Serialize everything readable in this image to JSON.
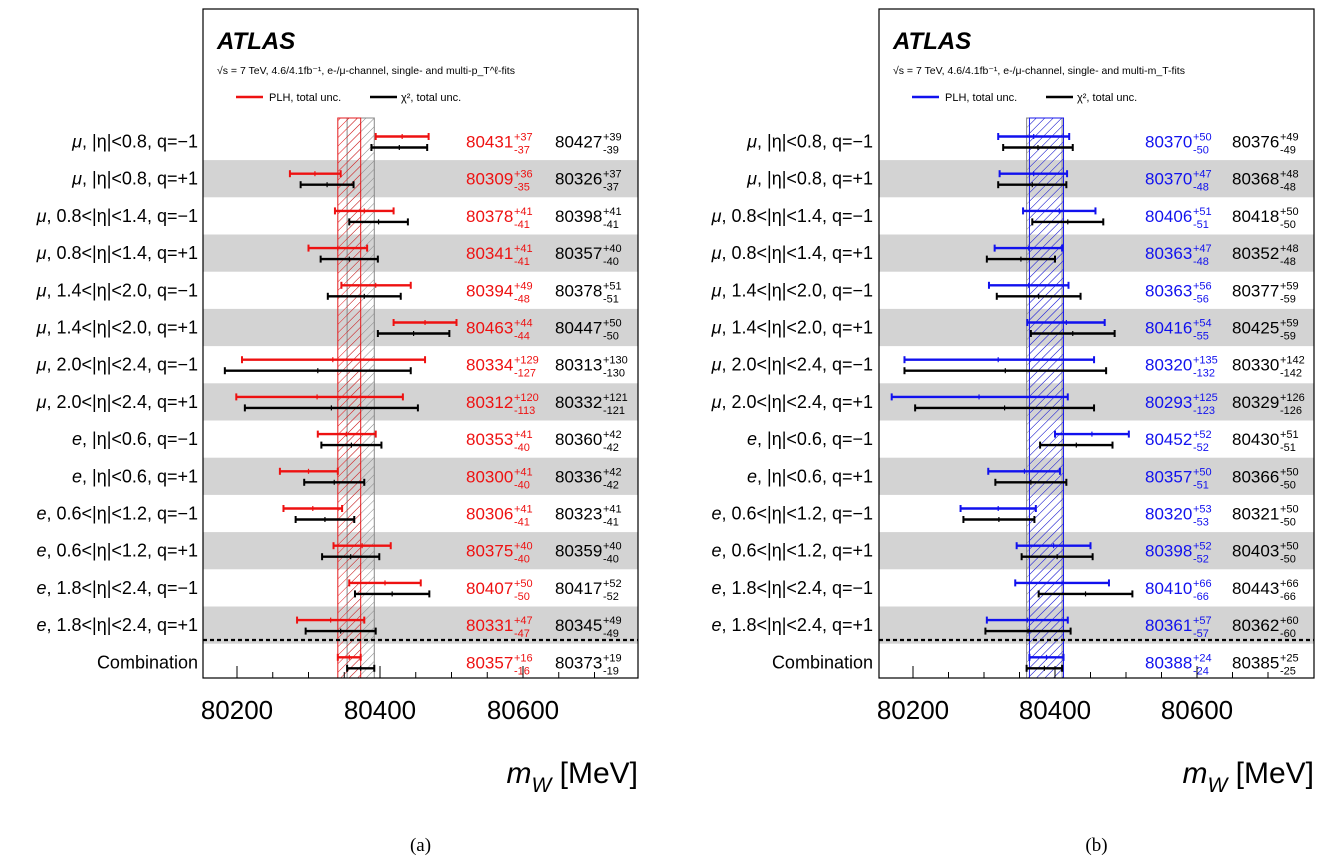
{
  "figure": {
    "row_labels": [
      "μ, |η|<0.8, q=−1",
      "μ, |η|<0.8, q=+1",
      "μ, 0.8<|η|<1.4, q=−1",
      "μ, 0.8<|η|<1.4, q=+1",
      "μ, 1.4<|η|<2.0, q=−1",
      "μ, 1.4<|η|<2.0, q=+1",
      "μ, 2.0<|η|<2.4, q=−1",
      "μ, 2.0<|η|<2.4, q=+1",
      "e, |η|<0.6, q=−1",
      "e, |η|<0.6, q=+1",
      "e, 0.6<|η|<1.2, q=−1",
      "e, 0.6<|η|<1.2, q=+1",
      "e, 1.8<|η|<2.4, q=−1",
      "e, 1.8<|η|<2.4, q=+1",
      "Combination"
    ]
  },
  "chart_data": [
    {
      "type": "forest",
      "panel_label": "(a)",
      "atlas_label": "ATLAS",
      "subtitle": "√s = 7 TeV, 4.6/4.1fb⁻¹, e-/μ-channel, single- and multi-p_T^ℓ-fits",
      "xlabel": "m_W [MeV]",
      "xlim": [
        80160,
        80750
      ],
      "xticks": [
        80200,
        80400,
        80600
      ],
      "combination_band": {
        "center": 80357,
        "lo": 16,
        "hi": 16,
        "color": "#e31a1c"
      },
      "chi2_band": {
        "center": 80373,
        "lo": 19,
        "hi": 19
      },
      "series": [
        {
          "name": "PLH, total unc.",
          "color": "#ee1111",
          "points": [
            {
              "v": 80431,
              "up": 37,
              "dn": 37
            },
            {
              "v": 80309,
              "up": 36,
              "dn": 35
            },
            {
              "v": 80378,
              "up": 41,
              "dn": 41
            },
            {
              "v": 80341,
              "up": 41,
              "dn": 41
            },
            {
              "v": 80394,
              "up": 49,
              "dn": 48
            },
            {
              "v": 80463,
              "up": 44,
              "dn": 44
            },
            {
              "v": 80334,
              "up": 129,
              "dn": 127
            },
            {
              "v": 80312,
              "up": 120,
              "dn": 113
            },
            {
              "v": 80353,
              "up": 41,
              "dn": 40
            },
            {
              "v": 80300,
              "up": 41,
              "dn": 40
            },
            {
              "v": 80306,
              "up": 41,
              "dn": 41
            },
            {
              "v": 80375,
              "up": 40,
              "dn": 40
            },
            {
              "v": 80407,
              "up": 50,
              "dn": 50
            },
            {
              "v": 80331,
              "up": 47,
              "dn": 47
            },
            {
              "v": 80357,
              "up": 16,
              "dn": 16
            }
          ]
        },
        {
          "name": "χ², total unc.",
          "color": "#000000",
          "points": [
            {
              "v": 80427,
              "up": 39,
              "dn": 39
            },
            {
              "v": 80326,
              "up": 37,
              "dn": 37
            },
            {
              "v": 80398,
              "up": 41,
              "dn": 41
            },
            {
              "v": 80357,
              "up": 40,
              "dn": 40
            },
            {
              "v": 80378,
              "up": 51,
              "dn": 51
            },
            {
              "v": 80447,
              "up": 50,
              "dn": 50
            },
            {
              "v": 80313,
              "up": 130,
              "dn": 130
            },
            {
              "v": 80332,
              "up": 121,
              "dn": 121
            },
            {
              "v": 80360,
              "up": 42,
              "dn": 42
            },
            {
              "v": 80336,
              "up": 42,
              "dn": 42
            },
            {
              "v": 80323,
              "up": 41,
              "dn": 41
            },
            {
              "v": 80359,
              "up": 40,
              "dn": 40
            },
            {
              "v": 80417,
              "up": 52,
              "dn": 52
            },
            {
              "v": 80345,
              "up": 49,
              "dn": 49
            },
            {
              "v": 80373,
              "up": 19,
              "dn": 19
            }
          ]
        }
      ]
    },
    {
      "type": "forest",
      "panel_label": "(b)",
      "atlas_label": "ATLAS",
      "subtitle": "√s = 7 TeV, 4.6/4.1fb⁻¹, e-/μ-channel, single- and multi-m_T-fits",
      "xlabel": "m_W [MeV]",
      "xlim": [
        80160,
        80750
      ],
      "xticks": [
        80200,
        80400,
        80600
      ],
      "combination_band": {
        "center": 80388,
        "lo": 24,
        "hi": 24,
        "color": "#1a1aee"
      },
      "chi2_band": {
        "center": 80385,
        "lo": 25,
        "hi": 25
      },
      "series": [
        {
          "name": "PLH, total unc.",
          "color": "#1111ee",
          "points": [
            {
              "v": 80370,
              "up": 50,
              "dn": 50
            },
            {
              "v": 80370,
              "up": 47,
              "dn": 48
            },
            {
              "v": 80406,
              "up": 51,
              "dn": 51
            },
            {
              "v": 80363,
              "up": 47,
              "dn": 48
            },
            {
              "v": 80363,
              "up": 56,
              "dn": 56
            },
            {
              "v": 80416,
              "up": 54,
              "dn": 55
            },
            {
              "v": 80320,
              "up": 135,
              "dn": 132
            },
            {
              "v": 80293,
              "up": 125,
              "dn": 123
            },
            {
              "v": 80452,
              "up": 52,
              "dn": 52
            },
            {
              "v": 80357,
              "up": 50,
              "dn": 51
            },
            {
              "v": 80320,
              "up": 53,
              "dn": 53
            },
            {
              "v": 80398,
              "up": 52,
              "dn": 52
            },
            {
              "v": 80410,
              "up": 66,
              "dn": 66
            },
            {
              "v": 80361,
              "up": 57,
              "dn": 57
            },
            {
              "v": 80388,
              "up": 24,
              "dn": 24
            }
          ]
        },
        {
          "name": "χ², total unc.",
          "color": "#000000",
          "points": [
            {
              "v": 80376,
              "up": 49,
              "dn": 49
            },
            {
              "v": 80368,
              "up": 48,
              "dn": 48
            },
            {
              "v": 80418,
              "up": 50,
              "dn": 50
            },
            {
              "v": 80352,
              "up": 48,
              "dn": 48
            },
            {
              "v": 80377,
              "up": 59,
              "dn": 59
            },
            {
              "v": 80425,
              "up": 59,
              "dn": 59
            },
            {
              "v": 80330,
              "up": 142,
              "dn": 142
            },
            {
              "v": 80329,
              "up": 126,
              "dn": 126
            },
            {
              "v": 80430,
              "up": 51,
              "dn": 51
            },
            {
              "v": 80366,
              "up": 50,
              "dn": 50
            },
            {
              "v": 80321,
              "up": 50,
              "dn": 50
            },
            {
              "v": 80403,
              "up": 50,
              "dn": 50
            },
            {
              "v": 80443,
              "up": 66,
              "dn": 66
            },
            {
              "v": 80362,
              "up": 60,
              "dn": 60
            },
            {
              "v": 80385,
              "up": 25,
              "dn": 25
            }
          ]
        }
      ]
    }
  ]
}
